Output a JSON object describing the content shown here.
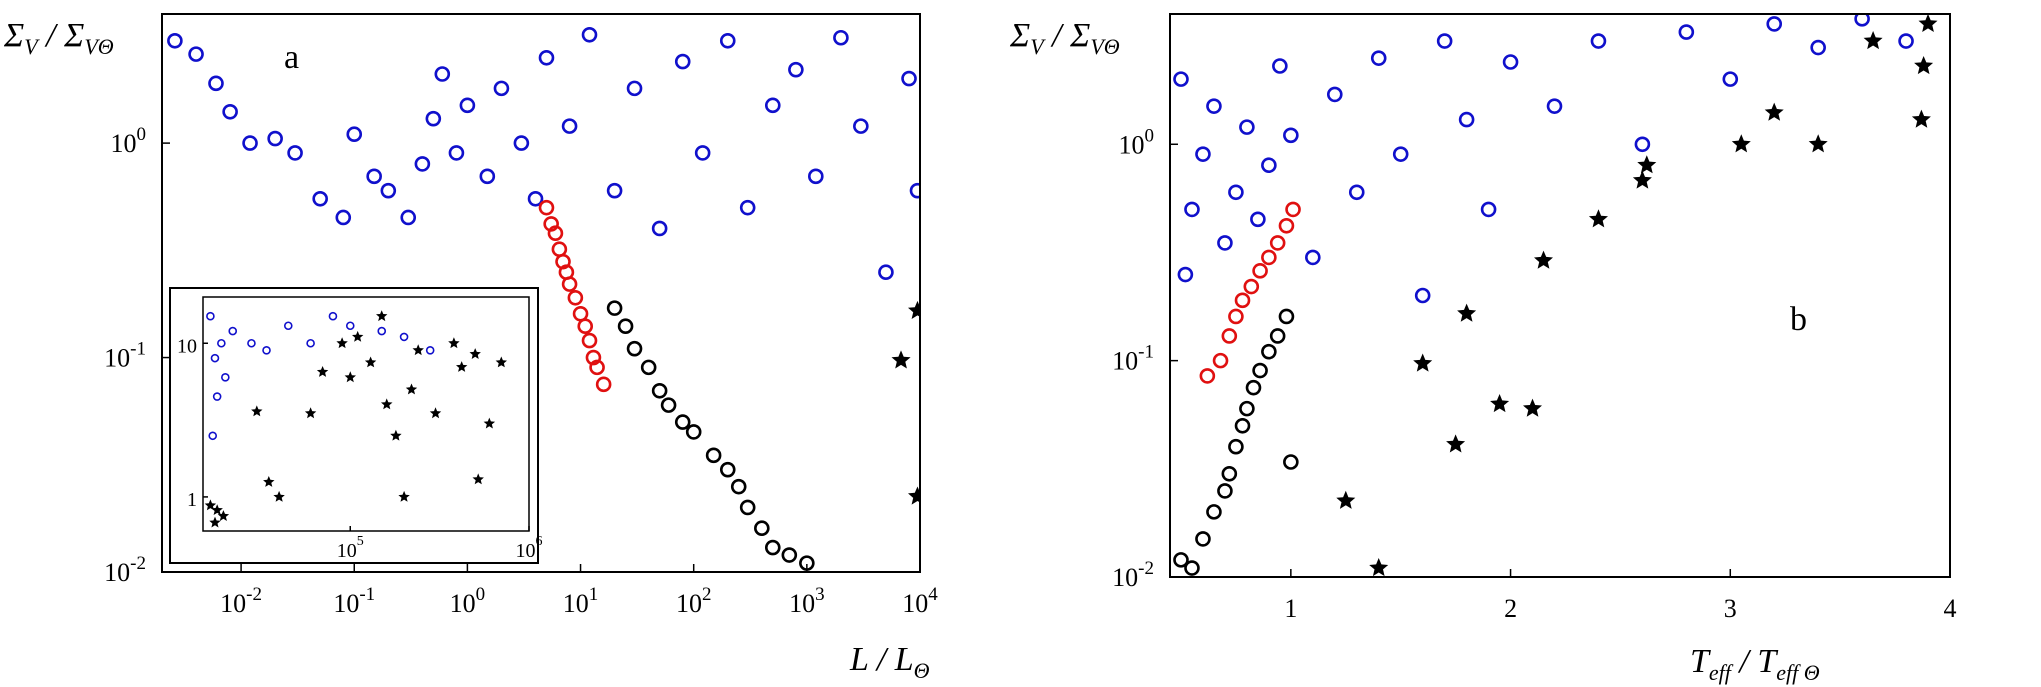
{
  "chart_data": [
    {
      "type": "scatter",
      "panel_label": "a",
      "xlabel": "L / L_Θ",
      "ylabel": "Σ_V / Σ_VΘ",
      "xscale": "log",
      "yscale": "log",
      "xlim": [
        0.002,
        10000
      ],
      "ylim": [
        0.01,
        4
      ],
      "x_ticks": [
        {
          "value": 0.01,
          "label": "10",
          "exp": "-2"
        },
        {
          "value": 0.1,
          "label": "10",
          "exp": "-1"
        },
        {
          "value": 1,
          "label": "10",
          "exp": "0"
        },
        {
          "value": 10,
          "label": "10",
          "exp": "1"
        },
        {
          "value": 100,
          "label": "10",
          "exp": "2"
        },
        {
          "value": 1000,
          "label": "10",
          "exp": "3"
        },
        {
          "value": 10000,
          "label": "10",
          "exp": "4"
        }
      ],
      "y_ticks": [
        {
          "value": 0.01,
          "label": "10",
          "exp": "-2"
        },
        {
          "value": 0.1,
          "label": "10",
          "exp": "-1"
        },
        {
          "value": 1,
          "label": "10",
          "exp": "0"
        }
      ],
      "series": [
        {
          "color": "#1010cc",
          "marker": "circle",
          "points": [
            [
              0.0026,
              3.0
            ],
            [
              0.004,
              2.6
            ],
            [
              0.006,
              1.9
            ],
            [
              0.008,
              1.4
            ],
            [
              0.012,
              1.0
            ],
            [
              0.02,
              1.05
            ],
            [
              0.03,
              0.9
            ],
            [
              0.05,
              0.55
            ],
            [
              0.08,
              0.45
            ],
            [
              0.1,
              1.1
            ],
            [
              0.15,
              0.7
            ],
            [
              0.2,
              0.6
            ],
            [
              0.3,
              0.45
            ],
            [
              0.4,
              0.8
            ],
            [
              0.5,
              1.3
            ],
            [
              0.6,
              2.1
            ],
            [
              0.8,
              0.9
            ],
            [
              1.0,
              1.5
            ],
            [
              1.5,
              0.7
            ],
            [
              2.0,
              1.8
            ],
            [
              3.0,
              1.0
            ],
            [
              4.0,
              0.55
            ],
            [
              5.0,
              2.5
            ],
            [
              8.0,
              1.2
            ],
            [
              12.0,
              3.2
            ],
            [
              20.0,
              0.6
            ],
            [
              30.0,
              1.8
            ],
            [
              50.0,
              0.4
            ],
            [
              80.0,
              2.4
            ],
            [
              120.0,
              0.9
            ],
            [
              200.0,
              3.0
            ],
            [
              300.0,
              0.5
            ],
            [
              500.0,
              1.5
            ],
            [
              800.0,
              2.2
            ],
            [
              1200.0,
              0.7
            ],
            [
              2000.0,
              3.1
            ],
            [
              3000.0,
              1.2
            ],
            [
              5000.0,
              0.25
            ],
            [
              8000.0,
              2.0
            ],
            [
              9500.0,
              0.6
            ]
          ]
        },
        {
          "color": "#e01010",
          "marker": "circle",
          "points": [
            [
              5.0,
              0.5
            ],
            [
              5.5,
              0.42
            ],
            [
              6.0,
              0.38
            ],
            [
              6.5,
              0.32
            ],
            [
              7.0,
              0.28
            ],
            [
              7.5,
              0.25
            ],
            [
              8.0,
              0.22
            ],
            [
              9.0,
              0.19
            ],
            [
              10.0,
              0.16
            ],
            [
              11.0,
              0.14
            ],
            [
              12.0,
              0.12
            ],
            [
              13.0,
              0.1
            ],
            [
              14.0,
              0.09
            ],
            [
              16.0,
              0.075
            ]
          ]
        },
        {
          "color": "#000000",
          "marker": "circle",
          "points": [
            [
              20.0,
              0.17
            ],
            [
              25.0,
              0.14
            ],
            [
              30.0,
              0.11
            ],
            [
              40.0,
              0.09
            ],
            [
              50.0,
              0.07
            ],
            [
              60.0,
              0.06
            ],
            [
              80.0,
              0.05
            ],
            [
              100.0,
              0.045
            ],
            [
              150.0,
              0.035
            ],
            [
              200.0,
              0.03
            ],
            [
              250.0,
              0.025
            ],
            [
              300.0,
              0.02
            ],
            [
              400.0,
              0.016
            ],
            [
              500.0,
              0.013
            ],
            [
              700.0,
              0.012
            ],
            [
              1000.0,
              0.011
            ]
          ]
        },
        {
          "color": "#000000",
          "marker": "star",
          "points": [
            [
              9500,
              0.165
            ],
            [
              6800,
              0.097
            ],
            [
              9500,
              0.0225
            ]
          ]
        }
      ],
      "inset": {
        "xscale": "log",
        "yscale": "log",
        "xlim": [
          15000,
          1000000
        ],
        "ylim": [
          0.6,
          20
        ],
        "x_ticks": [
          {
            "value": 100000,
            "label": "10",
            "exp": "5"
          },
          {
            "value": 1000000,
            "label": "10",
            "exp": "6"
          }
        ],
        "y_ticks": [
          {
            "value": 1,
            "label": "1"
          },
          {
            "value": 10,
            "label": "10"
          }
        ],
        "series": [
          {
            "color": "#1010cc",
            "marker": "circle",
            "points": [
              [
                16500,
                15
              ],
              [
                17500,
                8
              ],
              [
                19000,
                10
              ],
              [
                20000,
                6
              ],
              [
                18000,
                4.5
              ],
              [
                17000,
                2.5
              ],
              [
                22000,
                12
              ],
              [
                28000,
                10
              ],
              [
                34000,
                9
              ],
              [
                45000,
                13
              ],
              [
                60000,
                10
              ],
              [
                80000,
                15
              ],
              [
                100000,
                13
              ],
              [
                150000,
                12
              ],
              [
                200000,
                11
              ],
              [
                280000,
                9
              ]
            ]
          },
          {
            "color": "#000000",
            "marker": "star",
            "points": [
              [
                16500,
                0.88
              ],
              [
                18000,
                0.82
              ],
              [
                19500,
                0.75
              ],
              [
                17500,
                0.68
              ],
              [
                30000,
                3.6
              ],
              [
                35000,
                1.25
              ],
              [
                40000,
                1.0
              ],
              [
                60000,
                3.5
              ],
              [
                70000,
                6.5
              ],
              [
                90000,
                10
              ],
              [
                100000,
                6.0
              ],
              [
                110000,
                11
              ],
              [
                130000,
                7.5
              ],
              [
                150000,
                15
              ],
              [
                160000,
                4.0
              ],
              [
                180000,
                2.5
              ],
              [
                200000,
                1.0
              ],
              [
                220000,
                5.0
              ],
              [
                240000,
                9.0
              ],
              [
                300000,
                3.5
              ],
              [
                380000,
                10
              ],
              [
                420000,
                7.0
              ],
              [
                500000,
                8.5
              ],
              [
                520000,
                1.3
              ],
              [
                600000,
                3.0
              ],
              [
                700000,
                7.5
              ]
            ]
          }
        ]
      }
    },
    {
      "type": "scatter",
      "panel_label": "b",
      "xlabel": "T_eff / T_eff Θ",
      "ylabel": "Σ_V / Σ_VΘ",
      "xscale": "linear",
      "yscale": "log",
      "xlim": [
        0.45,
        4.0
      ],
      "ylim": [
        0.01,
        4
      ],
      "x_ticks": [
        {
          "value": 1,
          "label": "1"
        },
        {
          "value": 2,
          "label": "2"
        },
        {
          "value": 3,
          "label": "3"
        },
        {
          "value": 4,
          "label": "4"
        }
      ],
      "y_ticks": [
        {
          "value": 0.01,
          "label": "10",
          "exp": "-2"
        },
        {
          "value": 0.1,
          "label": "10",
          "exp": "-1"
        },
        {
          "value": 1,
          "label": "10",
          "exp": "0"
        }
      ],
      "series": [
        {
          "color": "#1010cc",
          "marker": "circle",
          "points": [
            [
              0.5,
              2.0
            ],
            [
              0.52,
              0.25
            ],
            [
              0.55,
              0.5
            ],
            [
              0.6,
              0.9
            ],
            [
              0.65,
              1.5
            ],
            [
              0.7,
              0.35
            ],
            [
              0.75,
              0.6
            ],
            [
              0.8,
              1.2
            ],
            [
              0.85,
              0.45
            ],
            [
              0.9,
              0.8
            ],
            [
              0.95,
              2.3
            ],
            [
              1.0,
              1.1
            ],
            [
              1.1,
              0.3
            ],
            [
              1.2,
              1.7
            ],
            [
              1.3,
              0.6
            ],
            [
              1.4,
              2.5
            ],
            [
              1.5,
              0.9
            ],
            [
              1.6,
              0.2
            ],
            [
              1.7,
              3.0
            ],
            [
              1.8,
              1.3
            ],
            [
              1.9,
              0.5
            ],
            [
              2.0,
              2.4
            ],
            [
              2.2,
              1.5
            ],
            [
              2.4,
              3.0
            ],
            [
              2.6,
              1.0
            ],
            [
              2.8,
              3.3
            ],
            [
              3.0,
              2.0
            ],
            [
              3.2,
              3.6
            ],
            [
              3.4,
              2.8
            ],
            [
              3.6,
              3.8
            ],
            [
              3.8,
              3.0
            ]
          ]
        },
        {
          "color": "#e01010",
          "marker": "circle",
          "points": [
            [
              0.62,
              0.085
            ],
            [
              0.68,
              0.1
            ],
            [
              0.72,
              0.13
            ],
            [
              0.75,
              0.16
            ],
            [
              0.78,
              0.19
            ],
            [
              0.82,
              0.22
            ],
            [
              0.86,
              0.26
            ],
            [
              0.9,
              0.3
            ],
            [
              0.94,
              0.35
            ],
            [
              0.98,
              0.42
            ],
            [
              1.01,
              0.5
            ]
          ]
        },
        {
          "color": "#000000",
          "marker": "circle",
          "points": [
            [
              0.5,
              0.012
            ],
            [
              0.55,
              0.011
            ],
            [
              0.6,
              0.015
            ],
            [
              0.65,
              0.02
            ],
            [
              0.7,
              0.025
            ],
            [
              0.72,
              0.03
            ],
            [
              0.75,
              0.04
            ],
            [
              0.78,
              0.05
            ],
            [
              0.8,
              0.06
            ],
            [
              0.83,
              0.075
            ],
            [
              0.86,
              0.09
            ],
            [
              0.9,
              0.11
            ],
            [
              0.94,
              0.13
            ],
            [
              0.98,
              0.16
            ],
            [
              1.0,
              0.034
            ]
          ]
        },
        {
          "color": "#000000",
          "marker": "star",
          "points": [
            [
              1.4,
              0.011
            ],
            [
              1.25,
              0.0225
            ],
            [
              1.6,
              0.097
            ],
            [
              1.8,
              0.165
            ],
            [
              1.75,
              0.041
            ],
            [
              1.95,
              0.063
            ],
            [
              2.1,
              0.06
            ],
            [
              2.15,
              0.29
            ],
            [
              2.4,
              0.45
            ],
            [
              2.6,
              0.68
            ],
            [
              2.62,
              0.8
            ],
            [
              3.05,
              1.0
            ],
            [
              3.2,
              1.4
            ],
            [
              3.4,
              1.0
            ],
            [
              3.65,
              3.0
            ],
            [
              3.9,
              3.6
            ],
            [
              3.88,
              2.3
            ],
            [
              3.87,
              1.3
            ]
          ]
        }
      ]
    }
  ]
}
